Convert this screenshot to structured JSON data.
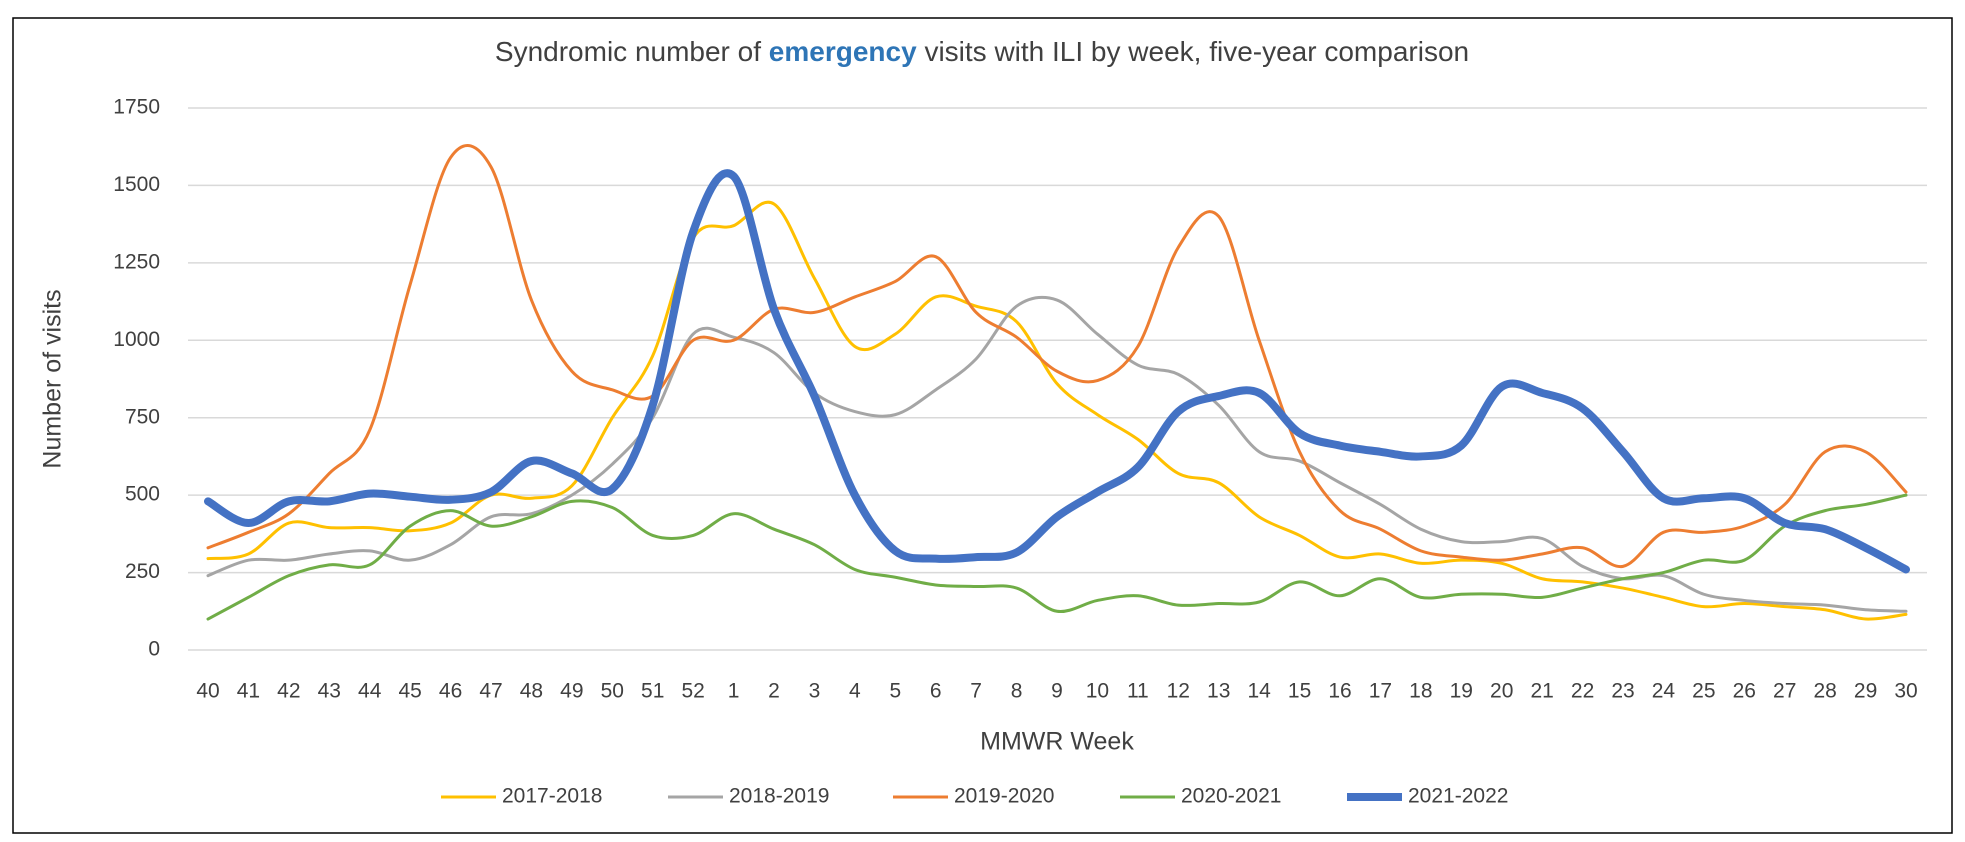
{
  "chart_data": {
    "type": "line",
    "title": [
      "Syndromic number of ",
      "emergency",
      " visits with ILI by week, five-year comparison"
    ],
    "title_highlight_color": "#2e75b6",
    "x_label": "MMWR Week",
    "y_label": "Number of visits",
    "categories": [
      "40",
      "41",
      "42",
      "43",
      "44",
      "45",
      "46",
      "47",
      "48",
      "49",
      "50",
      "51",
      "52",
      "1",
      "2",
      "3",
      "4",
      "5",
      "6",
      "7",
      "8",
      "9",
      "10",
      "11",
      "12",
      "13",
      "14",
      "15",
      "16",
      "17",
      "18",
      "19",
      "20",
      "21",
      "22",
      "23",
      "24",
      "25",
      "26",
      "27",
      "28",
      "29",
      "30"
    ],
    "ylim": [
      0,
      1750
    ],
    "yticks": [
      0,
      250,
      500,
      750,
      1000,
      1250,
      1500,
      1750
    ],
    "grid": true,
    "smooth": true,
    "legend": "bottom",
    "series": [
      {
        "name": "2017-2018",
        "color": "#ffc000",
        "width": 3,
        "values": [
          295,
          310,
          410,
          395,
          395,
          385,
          410,
          500,
          490,
          530,
          750,
          950,
          1330,
          1370,
          1440,
          1200,
          980,
          1020,
          1140,
          1110,
          1060,
          860,
          760,
          680,
          570,
          540,
          430,
          370,
          300,
          310,
          280,
          290,
          280,
          230,
          220,
          200,
          170,
          140,
          150,
          140,
          130,
          100,
          115
        ]
      },
      {
        "name": "2018-2019",
        "color": "#a5a5a5",
        "width": 3,
        "values": [
          240,
          290,
          290,
          310,
          320,
          290,
          340,
          430,
          440,
          500,
          600,
          750,
          1020,
          1010,
          960,
          830,
          770,
          760,
          840,
          940,
          1110,
          1130,
          1020,
          920,
          890,
          790,
          640,
          610,
          540,
          470,
          390,
          350,
          350,
          360,
          270,
          230,
          240,
          180,
          160,
          150,
          145,
          130,
          125
        ]
      },
      {
        "name": "2019-2020",
        "color": "#ed7d31",
        "width": 3,
        "values": [
          330,
          380,
          440,
          570,
          710,
          1180,
          1590,
          1560,
          1130,
          900,
          840,
          820,
          1000,
          1000,
          1100,
          1090,
          1140,
          1190,
          1270,
          1090,
          1010,
          900,
          870,
          980,
          1300,
          1400,
          1000,
          640,
          450,
          390,
          320,
          300,
          290,
          310,
          330,
          270,
          380,
          380,
          400,
          470,
          640,
          640,
          510
        ]
      },
      {
        "name": "2020-2021",
        "color": "#70ad47",
        "width": 3,
        "values": [
          100,
          170,
          240,
          275,
          275,
          400,
          450,
          400,
          430,
          480,
          460,
          370,
          370,
          440,
          390,
          340,
          260,
          235,
          210,
          205,
          200,
          125,
          160,
          175,
          145,
          150,
          155,
          220,
          175,
          230,
          170,
          180,
          180,
          170,
          200,
          230,
          250,
          290,
          290,
          400,
          450,
          470,
          500
        ]
      },
      {
        "name": "2021-2022",
        "color": "#4472c4",
        "width": 8,
        "values": [
          480,
          410,
          480,
          480,
          505,
          495,
          485,
          510,
          610,
          570,
          520,
          790,
          1350,
          1530,
          1100,
          820,
          500,
          320,
          295,
          300,
          315,
          430,
          510,
          590,
          770,
          820,
          830,
          700,
          660,
          640,
          625,
          660,
          850,
          830,
          780,
          640,
          490,
          490,
          490,
          410,
          390,
          330,
          260
        ]
      }
    ]
  }
}
